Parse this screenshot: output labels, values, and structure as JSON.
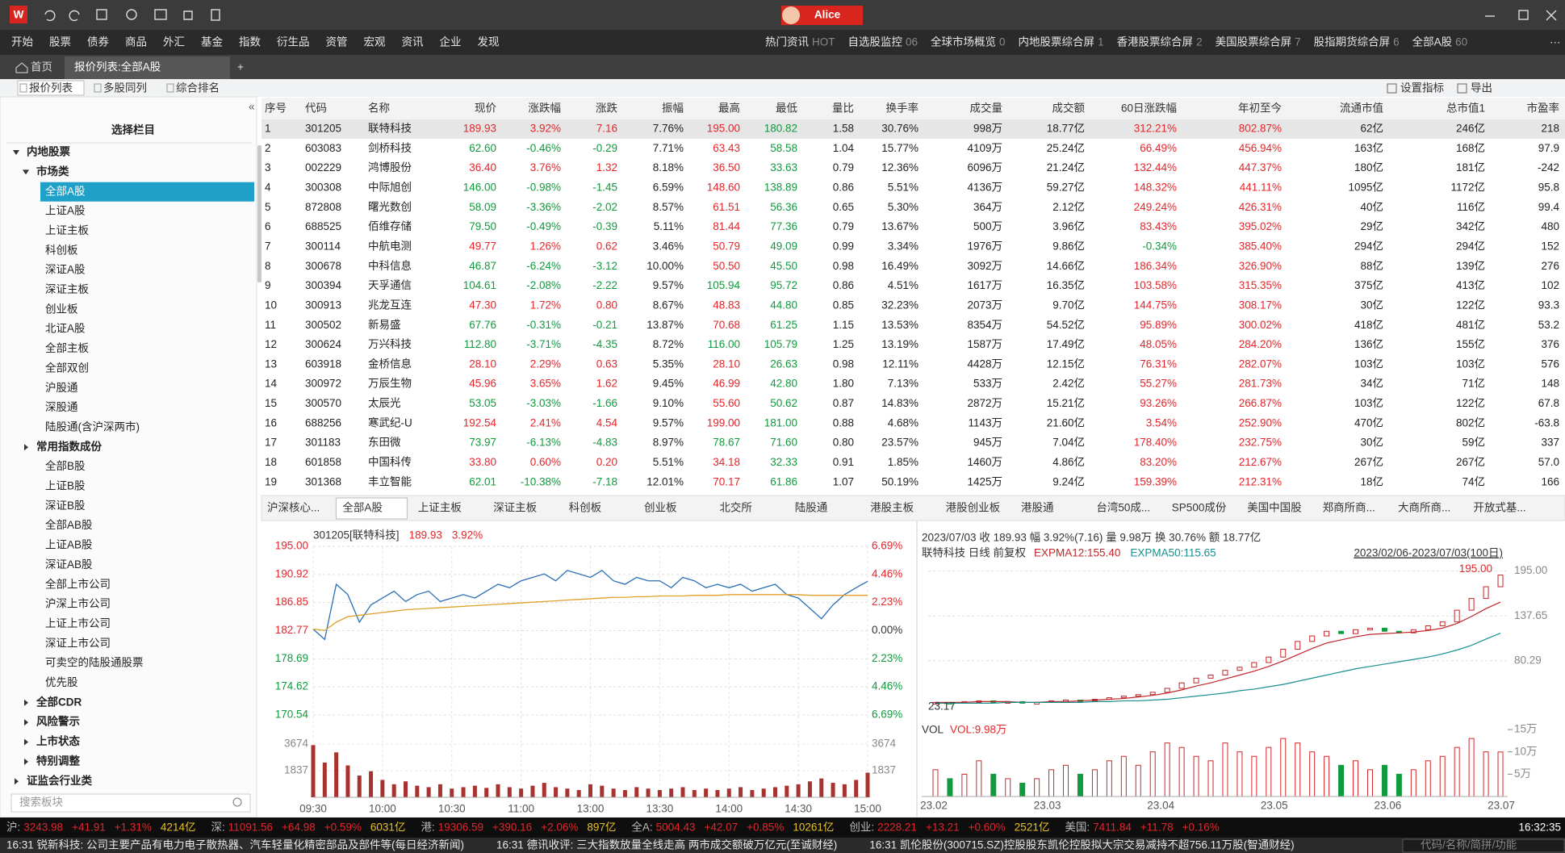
{
  "app": {
    "logo": "W",
    "user": "Alice"
  },
  "menu": {
    "items": [
      "开始",
      "股票",
      "债券",
      "商品",
      "外汇",
      "基金",
      "指数",
      "衍生品",
      "资管",
      "宏观",
      "资讯",
      "企业",
      "发现"
    ],
    "right": [
      {
        "label": "热门资讯",
        "badge": "HOT"
      },
      {
        "label": "自选股监控",
        "badge": "06"
      },
      {
        "label": "全球市场概览",
        "badge": "0"
      },
      {
        "label": "内地股票综合屏",
        "badge": "1"
      },
      {
        "label": "香港股票综合屏",
        "badge": "2"
      },
      {
        "label": "美国股票综合屏",
        "badge": "7"
      },
      {
        "label": "股指期货综合屏",
        "badge": "6"
      },
      {
        "label": "全部A股",
        "badge": "60"
      }
    ],
    "more": "···"
  },
  "tabs": {
    "items": [
      "首页",
      "报价列表:全部A股"
    ],
    "active": "报价列表:全部A股"
  },
  "toolbar": {
    "items": [
      "报价列表",
      "多股同列",
      "综合排名"
    ],
    "active": "报价列表",
    "right": [
      "设置指标",
      "导出"
    ]
  },
  "sidebar": {
    "title": "选择栏目",
    "selected": "全部A股",
    "search_placeholder": "搜索板块",
    "items": [
      {
        "label": "内地股票",
        "level": 0,
        "state": "open"
      },
      {
        "label": "市场类",
        "level": 1,
        "state": "open"
      },
      {
        "label": "全部A股",
        "level": 2
      },
      {
        "label": "上证A股",
        "level": 2
      },
      {
        "label": "上证主板",
        "level": 2
      },
      {
        "label": "科创板",
        "level": 2
      },
      {
        "label": "深证A股",
        "level": 2
      },
      {
        "label": "深证主板",
        "level": 2
      },
      {
        "label": "创业板",
        "level": 2
      },
      {
        "label": "北证A股",
        "level": 2
      },
      {
        "label": "全部主板",
        "level": 2
      },
      {
        "label": "全部双创",
        "level": 2
      },
      {
        "label": "沪股通",
        "level": 2
      },
      {
        "label": "深股通",
        "level": 2
      },
      {
        "label": "陆股通(含沪深两市)",
        "level": 2
      },
      {
        "label": "常用指数成份",
        "level": 1,
        "state": "closed"
      },
      {
        "label": "全部B股",
        "level": 2
      },
      {
        "label": "上证B股",
        "level": 2
      },
      {
        "label": "深证B股",
        "level": 2
      },
      {
        "label": "全部AB股",
        "level": 2
      },
      {
        "label": "上证AB股",
        "level": 2
      },
      {
        "label": "深证AB股",
        "level": 2
      },
      {
        "label": "全部上市公司",
        "level": 2
      },
      {
        "label": "沪深上市公司",
        "level": 2
      },
      {
        "label": "上证上市公司",
        "level": 2
      },
      {
        "label": "深证上市公司",
        "level": 2
      },
      {
        "label": "可卖空的陆股通股票",
        "level": 2
      },
      {
        "label": "优先股",
        "level": 2
      },
      {
        "label": "全部CDR",
        "level": 1,
        "state": "closed"
      },
      {
        "label": "风险警示",
        "level": 1,
        "state": "closed"
      },
      {
        "label": "上市状态",
        "level": 1,
        "state": "closed"
      },
      {
        "label": "特别调整",
        "level": 1,
        "state": "closed"
      },
      {
        "label": "证监会行业类",
        "level": 0,
        "state": "closed"
      }
    ]
  },
  "table": {
    "columns": [
      "序号",
      "代码",
      "名称",
      "现价",
      "涨跌幅",
      "涨跌",
      "振幅",
      "最高",
      "最低",
      "量比",
      "换手率",
      "成交量",
      "成交额",
      "60日涨跌幅",
      "年初至今",
      "流通市值",
      "总市值1",
      "市盈率"
    ],
    "rows": [
      [
        "1",
        "301205",
        "联特科技",
        "189.93",
        "3.92%",
        "7.16",
        "7.76%",
        "195.00",
        "180.82",
        "1.58",
        "30.76%",
        "998万",
        "18.77亿",
        "312.21%",
        "802.87%",
        "62亿",
        "246亿",
        "218"
      ],
      [
        "2",
        "603083",
        "剑桥科技",
        "62.60",
        "-0.46%",
        "-0.29",
        "7.71%",
        "63.43",
        "58.58",
        "1.04",
        "15.77%",
        "4109万",
        "25.24亿",
        "66.49%",
        "456.94%",
        "163亿",
        "168亿",
        "97.9"
      ],
      [
        "3",
        "002229",
        "鸿博股份",
        "36.40",
        "3.76%",
        "1.32",
        "8.18%",
        "36.50",
        "33.63",
        "0.79",
        "12.36%",
        "6096万",
        "21.24亿",
        "132.44%",
        "447.37%",
        "180亿",
        "181亿",
        "-242"
      ],
      [
        "4",
        "300308",
        "中际旭创",
        "146.00",
        "-0.98%",
        "-1.45",
        "6.59%",
        "148.60",
        "138.89",
        "0.86",
        "5.51%",
        "4136万",
        "59.27亿",
        "148.32%",
        "441.11%",
        "1095亿",
        "1172亿",
        "95.8"
      ],
      [
        "5",
        "872808",
        "曙光数创",
        "58.09",
        "-3.36%",
        "-2.02",
        "8.57%",
        "61.51",
        "56.36",
        "0.65",
        "5.30%",
        "364万",
        "2.12亿",
        "249.24%",
        "426.31%",
        "40亿",
        "116亿",
        "99.4"
      ],
      [
        "6",
        "688525",
        "佰维存储",
        "79.50",
        "-0.49%",
        "-0.39",
        "5.11%",
        "81.44",
        "77.36",
        "0.79",
        "13.67%",
        "500万",
        "3.96亿",
        "83.43%",
        "395.02%",
        "29亿",
        "342亿",
        "480"
      ],
      [
        "7",
        "300114",
        "中航电测",
        "49.77",
        "1.26%",
        "0.62",
        "3.46%",
        "50.79",
        "49.09",
        "0.99",
        "3.34%",
        "1976万",
        "9.86亿",
        "-0.34%",
        "385.40%",
        "294亿",
        "294亿",
        "152"
      ],
      [
        "8",
        "300678",
        "中科信息",
        "46.87",
        "-6.24%",
        "-3.12",
        "10.00%",
        "50.50",
        "45.50",
        "0.98",
        "16.49%",
        "3092万",
        "14.66亿",
        "186.34%",
        "326.90%",
        "88亿",
        "139亿",
        "276"
      ],
      [
        "9",
        "300394",
        "天孚通信",
        "104.61",
        "-2.08%",
        "-2.22",
        "9.57%",
        "105.94",
        "95.72",
        "0.86",
        "4.51%",
        "1617万",
        "16.35亿",
        "103.58%",
        "315.35%",
        "375亿",
        "413亿",
        "102"
      ],
      [
        "10",
        "300913",
        "兆龙互连",
        "47.30",
        "1.72%",
        "0.80",
        "8.67%",
        "48.83",
        "44.80",
        "0.85",
        "32.23%",
        "2073万",
        "9.70亿",
        "144.75%",
        "308.17%",
        "30亿",
        "122亿",
        "93.3"
      ],
      [
        "11",
        "300502",
        "新易盛",
        "67.76",
        "-0.31%",
        "-0.21",
        "13.87%",
        "70.68",
        "61.25",
        "1.15",
        "13.53%",
        "8354万",
        "54.52亿",
        "95.89%",
        "300.02%",
        "418亿",
        "481亿",
        "53.2"
      ],
      [
        "12",
        "300624",
        "万兴科技",
        "112.80",
        "-3.71%",
        "-4.35",
        "8.72%",
        "116.00",
        "105.79",
        "1.25",
        "13.19%",
        "1587万",
        "17.49亿",
        "48.05%",
        "284.20%",
        "136亿",
        "155亿",
        "376"
      ],
      [
        "13",
        "603918",
        "金桥信息",
        "28.10",
        "2.29%",
        "0.63",
        "5.35%",
        "28.10",
        "26.63",
        "0.98",
        "12.11%",
        "4428万",
        "12.15亿",
        "76.31%",
        "282.07%",
        "103亿",
        "103亿",
        "576"
      ],
      [
        "14",
        "300972",
        "万辰生物",
        "45.96",
        "3.65%",
        "1.62",
        "9.45%",
        "46.99",
        "42.80",
        "1.80",
        "7.13%",
        "533万",
        "2.42亿",
        "55.27%",
        "281.73%",
        "34亿",
        "71亿",
        "148"
      ],
      [
        "15",
        "300570",
        "太辰光",
        "53.05",
        "-3.03%",
        "-1.66",
        "9.10%",
        "55.60",
        "50.62",
        "0.87",
        "14.83%",
        "2872万",
        "15.21亿",
        "93.26%",
        "266.87%",
        "103亿",
        "122亿",
        "67.8"
      ],
      [
        "16",
        "688256",
        "寒武纪-U",
        "192.54",
        "2.41%",
        "4.54",
        "9.57%",
        "199.00",
        "181.00",
        "0.88",
        "4.68%",
        "1143万",
        "21.60亿",
        "3.54%",
        "252.90%",
        "470亿",
        "802亿",
        "-63.8"
      ],
      [
        "17",
        "301183",
        "东田微",
        "73.97",
        "-6.13%",
        "-4.83",
        "8.97%",
        "78.67",
        "71.60",
        "0.80",
        "23.57%",
        "945万",
        "7.04亿",
        "178.40%",
        "232.75%",
        "30亿",
        "59亿",
        "337"
      ],
      [
        "18",
        "601858",
        "中国科传",
        "33.80",
        "0.60%",
        "0.20",
        "5.51%",
        "34.18",
        "32.33",
        "0.91",
        "1.85%",
        "1460万",
        "4.86亿",
        "83.20%",
        "212.67%",
        "267亿",
        "267亿",
        "57.0"
      ],
      [
        "19",
        "301368",
        "丰立智能",
        "62.01",
        "-10.38%",
        "-7.18",
        "12.01%",
        "70.17",
        "61.86",
        "1.07",
        "50.19%",
        "1425万",
        "9.24亿",
        "159.39%",
        "212.31%",
        "18亿",
        "74亿",
        "166"
      ]
    ]
  },
  "board_tabs": {
    "items": [
      "沪深核心...",
      "全部A股",
      "上证主板",
      "深证主板",
      "科创板",
      "创业板",
      "北交所",
      "陆股通",
      "港股主板",
      "港股创业板",
      "港股通",
      "台湾50成...",
      "SP500成份",
      "美国中国股",
      "郑商所商...",
      "大商所商...",
      "开放式基..."
    ],
    "active": "全部A股"
  },
  "intraday": {
    "code_name": "301205[联特科技]",
    "price": "189.93",
    "change": "3.92%",
    "ylim": [
      170.54,
      195
    ],
    "yticks": [
      {
        "value": 195,
        "label": "195.00"
      },
      190.92,
      186.85,
      182.77,
      178.69,
      174.62,
      170.54
    ],
    "y2lim": [
      -6.69,
      6.69
    ],
    "y2ticks": [
      {
        "value": 6.69,
        "label": "6.69%"
      },
      {
        "value": 4.46,
        "label": "4.46%"
      },
      {
        "value": 2.23,
        "label": "2.23%"
      },
      {
        "value": 0,
        "label": "0.00%"
      },
      {
        "value": -2.23,
        "label": "2.23%"
      },
      {
        "value": -4.46,
        "label": "4.46%"
      },
      {
        "value": -6.69,
        "label": "6.69%"
      }
    ],
    "xticks": [
      "09:30",
      "10:00",
      "10:30",
      "11:00",
      "13:00",
      "13:30",
      "14:00",
      "14:30",
      "15:00"
    ],
    "series": [
      {
        "color": "#2b6fb6",
        "values": [
          183.0,
          181.5,
          189.5,
          188.0,
          184.0,
          186.5,
          187.5,
          188.5,
          187.0,
          188.0,
          188.5,
          187.0,
          187.5,
          188.0,
          187.5,
          188.5,
          189.5,
          189.0,
          190.0,
          190.5,
          191.0,
          190.0,
          191.5,
          191.0,
          190.5,
          191.5,
          190.0,
          189.5,
          190.5,
          190.0,
          190.0,
          189.0,
          190.5,
          190.0,
          189.0,
          189.5,
          189.0,
          189.5,
          188.5,
          189.0,
          189.5,
          188.0,
          187.5,
          186.0,
          184.5,
          186.5,
          188.0,
          189.0,
          189.93
        ]
      },
      {
        "color": "#e0a128",
        "values": [
          183.0,
          182.8,
          184.0,
          184.8,
          185.0,
          185.2,
          185.4,
          185.6,
          185.8,
          185.9,
          186.0,
          186.1,
          186.2,
          186.3,
          186.4,
          186.5,
          186.6,
          186.7,
          186.8,
          186.9,
          187.0,
          187.1,
          187.2,
          187.3,
          187.4,
          187.5,
          187.6,
          187.6,
          187.7,
          187.7,
          187.8,
          187.8,
          187.8,
          187.9,
          187.9,
          187.9,
          188.0,
          188.0,
          188.0,
          188.0,
          188.0,
          188.0,
          188.0,
          187.9,
          187.9,
          187.9,
          187.9,
          187.9,
          187.9
        ]
      }
    ],
    "volume": {
      "color": "#a8322d",
      "ylim": [
        0,
        5511
      ],
      "yticks": [
        3674,
        1837
      ],
      "values": [
        3600,
        2400,
        3100,
        2200,
        1500,
        1800,
        1200,
        900,
        1100,
        800,
        700,
        900,
        600,
        700,
        800,
        650,
        900,
        700,
        600,
        800,
        1000,
        700,
        600,
        500,
        900,
        800,
        600,
        500,
        700,
        600,
        500,
        600,
        700,
        500,
        600,
        500,
        600,
        700,
        500,
        600,
        700,
        800,
        900,
        1100,
        1300,
        1000,
        900,
        1200,
        1700
      ]
    }
  },
  "kline": {
    "header": "2023/07/03  收 189.93  幅 3.92%(7.16)  量 9.98万  换 30.76%  额 18.77亿",
    "title": "联特科技 日线 前复权",
    "range": "2023/02/06-2023/07/03(100日)",
    "ylim": [
      15,
      205
    ],
    "yticks": [
      {
        "value": 195,
        "label": "195.00"
      },
      137.65,
      80.29
    ],
    "high_label": {
      "value": 195,
      "label": "195.00"
    },
    "low_label": 23.17,
    "close_color": "#c0262a",
    "closes": [
      27,
      26,
      28,
      29,
      27,
      28,
      26,
      27,
      29,
      30,
      29,
      31,
      33,
      35,
      37,
      40,
      45,
      52,
      58,
      62,
      68,
      72,
      78,
      85,
      95,
      105,
      112,
      118,
      115,
      120,
      122,
      118,
      116,
      120,
      125,
      130,
      145,
      160,
      175,
      189.93
    ],
    "series": [
      {
        "name": "EXPMA12:155.40",
        "color": "#c0262a",
        "values": [
          27,
          27,
          27,
          28,
          28,
          28,
          27,
          27,
          28,
          28,
          29,
          30,
          31,
          32,
          34,
          36,
          39,
          43,
          48,
          52,
          57,
          62,
          67,
          73,
          80,
          88,
          96,
          103,
          107,
          111,
          114,
          115,
          116,
          117,
          119,
          122,
          128,
          137,
          147,
          155.4
        ]
      },
      {
        "name": "EXPMA50:115.65",
        "color": "#1a8f8f",
        "values": [
          26,
          26,
          26,
          26,
          26,
          27,
          27,
          27,
          27,
          27,
          27,
          28,
          28,
          29,
          29,
          30,
          31,
          33,
          35,
          37,
          39,
          42,
          44,
          47,
          50,
          54,
          58,
          62,
          66,
          70,
          73,
          76,
          79,
          82,
          85,
          89,
          94,
          100,
          108,
          115.65
        ]
      }
    ],
    "x_labels": [
      "23.02",
      "23.03",
      "23.04",
      "23.05",
      "23.06",
      "23.07"
    ],
    "volume": {
      "title": "VOL",
      "legend": "VOL:9.98万",
      "ylim": [
        0,
        17
      ],
      "yticks": [
        {
          "value": 15,
          "label": "15万"
        },
        {
          "value": 10,
          "label": "10万"
        },
        {
          "value": 5,
          "label": "5万"
        }
      ],
      "up_color": "#d3262b",
      "down_color": "#119a3e",
      "values": [
        6,
        4,
        5,
        8,
        5,
        4,
        3,
        4,
        6,
        7,
        5,
        6,
        8,
        9,
        7,
        10,
        12,
        11,
        9,
        8,
        12,
        10,
        9,
        11,
        13,
        12,
        10,
        9,
        7,
        8,
        6,
        7,
        5,
        6,
        8,
        9,
        11,
        13,
        10,
        9.98
      ]
    }
  },
  "status_bar": {
    "groups": [
      {
        "label": "沪:",
        "values": [
          "3243.98",
          "+41.91",
          "+1.31%",
          "4214亿"
        ]
      },
      {
        "label": "深:",
        "values": [
          "11091.56",
          "+64.98",
          "+0.59%",
          "6031亿"
        ]
      },
      {
        "label": "港:",
        "values": [
          "19306.59",
          "+390.16",
          "+2.06%",
          "897亿"
        ]
      },
      {
        "label": "全A:",
        "values": [
          "5004.43",
          "+42.07",
          "+0.85%",
          "10261亿"
        ]
      },
      {
        "label": "创业:",
        "values": [
          "2228.21",
          "+13.21",
          "+0.60%",
          "2521亿"
        ]
      },
      {
        "label": "美国:",
        "values": [
          "7411.84",
          "+11.78",
          "+0.16%"
        ]
      }
    ],
    "time": "16:32:35"
  },
  "news": {
    "items": [
      "16:31 锐新科技: 公司主要产品有电力电子散热器、汽车轻量化精密部品及部件等(每日经济新闻)",
      "16:31 德讯收评: 三大指数放量全线走高 两市成交额破万亿元(至诚财经)",
      "16:31 凯伦股份(300715.SZ)控股股东凯伦控股拟大宗交易减持不超756.11万股(智通财经)"
    ],
    "search_placeholder": "代码/名称/简拼/功能"
  }
}
